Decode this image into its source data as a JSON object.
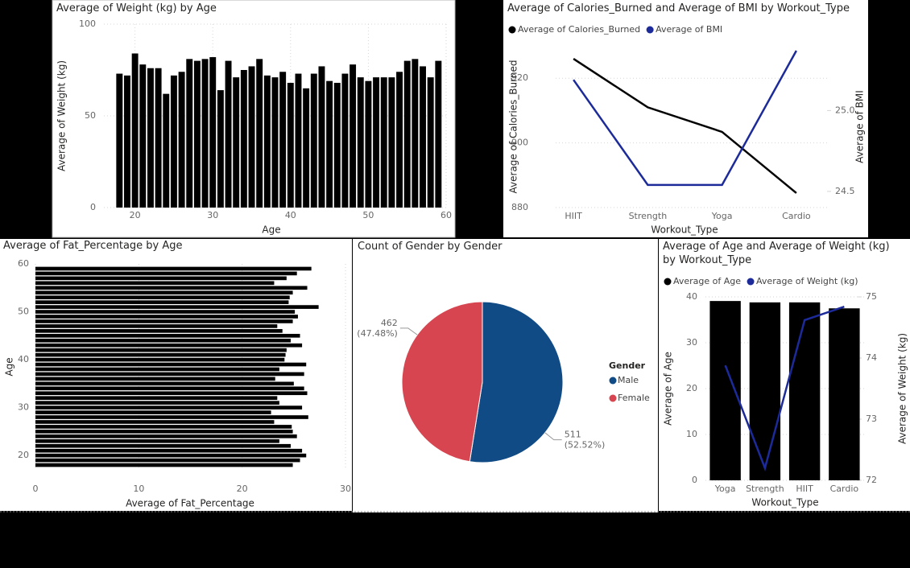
{
  "chart_data": [
    {
      "type": "bar",
      "title": "Average of Weight (kg) by Age",
      "x_label": "Age",
      "y_label": "Average of Weight (kg)",
      "x": [
        18,
        19,
        20,
        21,
        22,
        23,
        24,
        25,
        26,
        27,
        28,
        29,
        30,
        31,
        32,
        33,
        34,
        35,
        36,
        37,
        38,
        39,
        40,
        41,
        42,
        43,
        44,
        45,
        46,
        47,
        48,
        49,
        50,
        51,
        52,
        53,
        54,
        55,
        56,
        57,
        58,
        59
      ],
      "values": [
        73,
        72,
        84,
        78,
        76,
        76,
        62,
        72,
        74,
        81,
        80,
        81,
        82,
        64,
        80,
        71,
        75,
        77,
        81,
        72,
        71,
        74,
        68,
        73,
        65,
        73,
        77,
        69,
        68,
        73,
        78,
        71,
        69,
        71,
        71,
        71,
        74,
        80,
        81,
        77,
        71,
        80
      ],
      "color": "#000000",
      "xlim": [
        16,
        60
      ],
      "xticks": [
        20,
        30,
        40,
        50,
        60
      ],
      "ylim": [
        0,
        100
      ],
      "yticks": [
        0,
        50,
        100
      ],
      "grid": true
    },
    {
      "type": "line",
      "title": "Average of Calories_Burned and Average of BMI by Workout_Type",
      "x_label": "Workout_Type",
      "y_label": "Average of Calories_Burned",
      "y2_label": "Average of BMI",
      "categories": [
        "HIIT",
        "Strength",
        "Yoga",
        "Cardio"
      ],
      "series": [
        {
          "name": "Average of Calories_Burned",
          "color": "#000000",
          "values": [
            926,
            911,
            903.4,
            884.5
          ]
        },
        {
          "name": "Average of BMI",
          "color": "#1c2b99",
          "axis": "y2",
          "values": [
            25.19,
            24.54,
            24.54,
            25.37
          ]
        }
      ],
      "ylim": [
        880,
        930
      ],
      "yticks": [
        880,
        900,
        920
      ],
      "y2lim": [
        24.4,
        25.4
      ],
      "y2ticks": [
        24.5,
        {
          "value": 25,
          "label": "25.0"
        }
      ],
      "grid": true,
      "legend": "top-left"
    },
    {
      "type": "hbar",
      "title": "Average of Fat_Percentage by Age",
      "x_label": "Average of Fat_Percentage",
      "y_label": "Age",
      "y": [
        18,
        19,
        20,
        21,
        22,
        23,
        24,
        25,
        26,
        27,
        28,
        29,
        30,
        31,
        32,
        33,
        34,
        35,
        36,
        37,
        38,
        39,
        40,
        41,
        42,
        43,
        44,
        45,
        46,
        47,
        48,
        49,
        50,
        51,
        52,
        53,
        54,
        55,
        56,
        57,
        58,
        59
      ],
      "values": [
        24.9,
        25.6,
        26.2,
        25.8,
        24.7,
        23.6,
        25.3,
        24.9,
        24.8,
        23.1,
        26.4,
        22.8,
        25.8,
        23.6,
        23.4,
        26.3,
        26.0,
        25.0,
        23.2,
        26.0,
        23.6,
        26.2,
        24.1,
        24.2,
        24.3,
        25.8,
        24.7,
        25.6,
        23.9,
        23.4,
        24.9,
        25.4,
        25.1,
        27.4,
        24.5,
        24.6,
        24.9,
        26.3,
        23.1,
        24.3,
        25.3,
        26.7
      ],
      "color": "#000000",
      "xlim": [
        0,
        30
      ],
      "xticks": [
        0,
        10,
        20,
        30
      ],
      "ylim": [
        17,
        60
      ],
      "yticks": [
        20,
        30,
        40,
        50,
        60
      ],
      "grid": true
    },
    {
      "type": "pie",
      "title": "Count of Gender by Gender",
      "legend_title": "Gender",
      "categories": [
        "Male",
        "Female"
      ],
      "values": [
        511,
        462
      ],
      "percent_labels": [
        "(52.52%)",
        "(47.48%)"
      ],
      "colors": [
        "#114b85",
        "#d64550"
      ],
      "legend": "right"
    },
    {
      "type": "combo",
      "title": "Average of Age and Average of Weight (kg) by Workout_Type",
      "x_label": "Workout_Type",
      "y_label": "Average of Age",
      "y2_label": "Average of Weight (kg)",
      "categories": [
        "Yoga",
        "Strength",
        "HIIT",
        "Cardio"
      ],
      "series": [
        {
          "name": "Average of Age",
          "type": "bar",
          "color": "#000000",
          "values": [
            39.1,
            38.8,
            38.8,
            37.5
          ]
        },
        {
          "name": "Average of Weight (kg)",
          "type": "line",
          "color": "#1c2b99",
          "axis": "y2",
          "values": [
            73.88,
            72.2,
            74.62,
            74.84
          ]
        }
      ],
      "ylim": [
        0,
        40
      ],
      "yticks": [
        0,
        10,
        20,
        30,
        40
      ],
      "y2lim": [
        72,
        75
      ],
      "y2ticks": [
        72,
        73,
        74,
        75
      ],
      "grid": true,
      "legend": "top-left"
    }
  ]
}
